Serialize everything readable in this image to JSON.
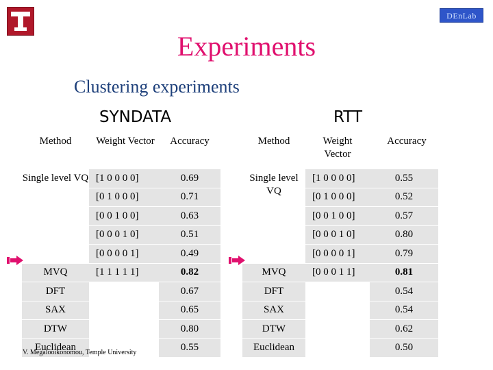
{
  "slide": {
    "title": "Experiments",
    "subtitle": "Clustering experiments",
    "corner_badge": "DEnLab",
    "footer": "V. Megalooikonomou, Temple University"
  },
  "colors": {
    "title": "#e0106e",
    "subtitle": "#1d3f7a",
    "logo": "#b0182a",
    "arrow": "#e0106e",
    "shaded": "#e4e4e4"
  },
  "datasets": [
    {
      "label": "SYNDATA",
      "headers": {
        "method": "Method",
        "weight": "Weight Vector",
        "accuracy": "Accuracy"
      },
      "single_level": "Single level VQ",
      "rows": [
        {
          "weight": "[1 0 0 0 0]",
          "accuracy": "0.69"
        },
        {
          "weight": "[0 1 0 0 0]",
          "accuracy": "0.71"
        },
        {
          "weight": "[0 0 1 0 0]",
          "accuracy": "0.63"
        },
        {
          "weight": "[0 0 0 1 0]",
          "accuracy": "0.51"
        },
        {
          "weight": "[0 0 0 0 1]",
          "accuracy": "0.49"
        }
      ],
      "mvq": {
        "method": "MVQ",
        "weight": "[1 1 1 1 1]",
        "accuracy": "0.82"
      },
      "others": [
        {
          "method": "DFT",
          "accuracy": "0.67"
        },
        {
          "method": "SAX",
          "accuracy": "0.65"
        },
        {
          "method": "DTW",
          "accuracy": "0.80"
        },
        {
          "method": "Euclidean",
          "accuracy": "0.55"
        }
      ]
    },
    {
      "label": "RTT",
      "headers": {
        "method": "Method",
        "weight": "Weight Vector",
        "accuracy": "Accuracy"
      },
      "single_level": "Single level VQ",
      "rows": [
        {
          "weight": "[1 0 0 0 0]",
          "accuracy": "0.55"
        },
        {
          "weight": "[0 1 0 0 0]",
          "accuracy": "0.52"
        },
        {
          "weight": "[0 0 1 0 0]",
          "accuracy": "0.57"
        },
        {
          "weight": "[0 0 0 1 0]",
          "accuracy": "0.80"
        },
        {
          "weight": "[0 0 0 0 1]",
          "accuracy": "0.79"
        }
      ],
      "mvq": {
        "method": "MVQ",
        "weight": "[0 0 0 1 1]",
        "accuracy": "0.81"
      },
      "others": [
        {
          "method": "DFT",
          "accuracy": "0.54"
        },
        {
          "method": "SAX",
          "accuracy": "0.54"
        },
        {
          "method": "DTW",
          "accuracy": "0.62"
        },
        {
          "method": "Euclidean",
          "accuracy": "0.50"
        }
      ]
    }
  ]
}
